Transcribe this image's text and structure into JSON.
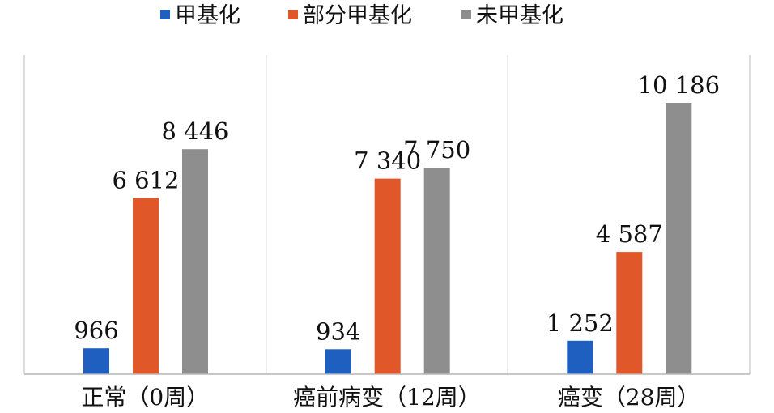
{
  "chart_data": {
    "type": "bar",
    "categories": [
      "正常（0周）",
      "癌前病变（12周）",
      "癌变（28周）"
    ],
    "series": [
      {
        "name": "甲基化",
        "color": "#1f5fbf",
        "values": [
          966,
          934,
          1252
        ],
        "labels": [
          "966",
          "934",
          "1 252"
        ]
      },
      {
        "name": "部分甲基化",
        "color": "#e0572a",
        "values": [
          6612,
          7340,
          4587
        ],
        "labels": [
          "6 612",
          "7 340",
          "4 587"
        ]
      },
      {
        "name": "未甲基化",
        "color": "#8e8e8e",
        "values": [
          8446,
          7750,
          10186
        ],
        "labels": [
          "8 446",
          "7 750",
          "10 186"
        ]
      }
    ],
    "legend_position": "top",
    "ylim": [
      0,
      13500
    ],
    "grid": false,
    "title": "",
    "xlabel": "",
    "ylabel": ""
  }
}
